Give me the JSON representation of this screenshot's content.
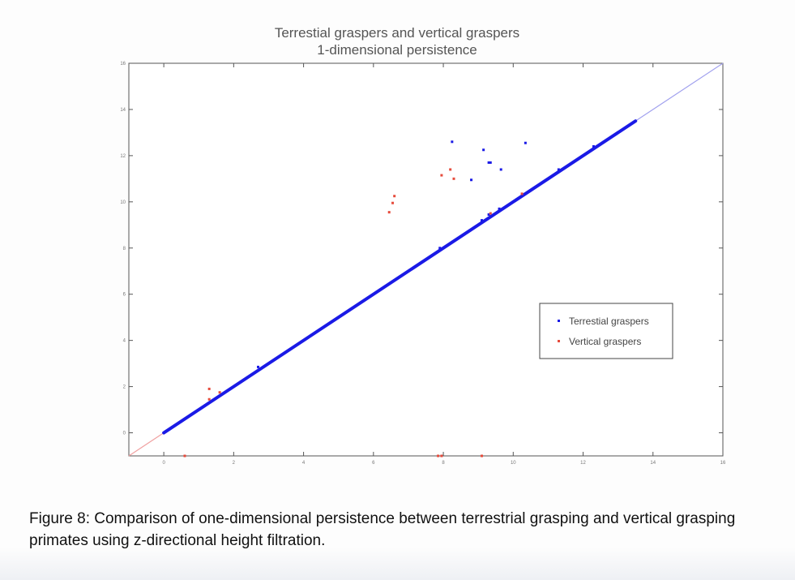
{
  "chart_data": {
    "type": "scatter",
    "title": "Terrestial graspers and vertical graspers",
    "subtitle": "1-dimensional persistence",
    "xlabel": "",
    "ylabel": "",
    "xlim": [
      -1,
      16
    ],
    "ylim": [
      -1,
      16
    ],
    "x_ticks": [
      0,
      2,
      4,
      6,
      8,
      10,
      12,
      14,
      16
    ],
    "y_ticks": [
      0,
      2,
      4,
      6,
      8,
      10,
      12,
      14,
      16
    ],
    "x_tick_labels": [
      "0",
      "2",
      "4",
      "6",
      "8",
      "10",
      "12",
      "14",
      "16"
    ],
    "y_tick_labels": [
      "0",
      "2",
      "4",
      "6",
      "8",
      "10",
      "12",
      "14",
      "16"
    ],
    "grid": false,
    "legend_position": "right",
    "diagonal": {
      "from": [
        -1,
        -1
      ],
      "to": [
        16,
        16
      ],
      "lower_color": "#f0a0a0",
      "upper_color": "#a0a0ee",
      "split_at": 0
    },
    "series": [
      {
        "name": "Terrestial graspers",
        "color": "#1a1ae6",
        "on_diagonal_range": [
          0,
          13.5
        ],
        "points": [
          [
            2.7,
            2.85
          ],
          [
            7.9,
            8.0
          ],
          [
            9.1,
            9.2
          ],
          [
            9.3,
            9.45
          ],
          [
            9.6,
            9.7
          ],
          [
            10.5,
            10.5
          ],
          [
            11.3,
            11.4
          ],
          [
            12.3,
            12.4
          ],
          [
            8.25,
            12.6
          ],
          [
            9.15,
            12.25
          ],
          [
            10.35,
            12.55
          ],
          [
            9.3,
            11.7
          ],
          [
            9.35,
            11.7
          ],
          [
            9.65,
            11.4
          ],
          [
            8.8,
            10.95
          ]
        ]
      },
      {
        "name": "Vertical graspers",
        "color": "#e64b3c",
        "points": [
          [
            0.6,
            -1.0
          ],
          [
            7.85,
            -1.0
          ],
          [
            7.95,
            -1.0
          ],
          [
            9.1,
            -1.0
          ],
          [
            1.3,
            1.9
          ],
          [
            1.3,
            1.45
          ],
          [
            1.6,
            1.75
          ],
          [
            6.45,
            9.55
          ],
          [
            6.55,
            9.95
          ],
          [
            6.6,
            10.25
          ],
          [
            7.95,
            11.15
          ],
          [
            8.2,
            11.4
          ],
          [
            8.3,
            11.0
          ],
          [
            10.25,
            10.35
          ],
          [
            9.35,
            9.5
          ]
        ]
      }
    ]
  },
  "caption": "Figure 8: Comparison of one-dimensional persistence between terrestrial grasping and vertical grasping primates using z-directional height filtration."
}
